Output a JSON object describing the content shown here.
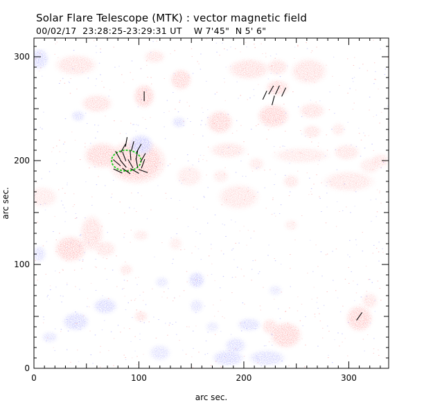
{
  "header": {
    "title": "Solar Flare Telescope (MTK) : vector magnetic field",
    "subtitle": "00/02/17  23:28:25-23:29:31 UT    W 7'45\"  N 5' 6\""
  },
  "chart_data": {
    "type": "heatmap",
    "xlabel": "arc sec.",
    "ylabel": "arc sec.",
    "xlim": [
      0,
      338
    ],
    "ylim": [
      0,
      318
    ],
    "xticks": [
      0,
      100,
      200,
      300
    ],
    "yticks": [
      0,
      100,
      200,
      300
    ],
    "grid": false,
    "colors": {
      "positive_polarity": "#ff8c8c",
      "negative_polarity": "#8c8cff",
      "contour": "#22cc22",
      "vectors": "#000000"
    },
    "positive_patches": [
      {
        "x": 98,
        "y": 199,
        "rx": 22,
        "ry": 17,
        "w": 1.0
      },
      {
        "x": 65,
        "y": 205,
        "rx": 14,
        "ry": 10,
        "w": 0.8
      },
      {
        "x": 105,
        "y": 262,
        "rx": 8,
        "ry": 9,
        "w": 0.9
      },
      {
        "x": 140,
        "y": 278,
        "rx": 8,
        "ry": 8,
        "w": 0.8
      },
      {
        "x": 60,
        "y": 255,
        "rx": 12,
        "ry": 7,
        "w": 0.6
      },
      {
        "x": 40,
        "y": 292,
        "rx": 16,
        "ry": 8,
        "w": 0.55
      },
      {
        "x": 115,
        "y": 300,
        "rx": 8,
        "ry": 5,
        "w": 0.5
      },
      {
        "x": 205,
        "y": 288,
        "rx": 16,
        "ry": 8,
        "w": 0.6
      },
      {
        "x": 232,
        "y": 290,
        "rx": 8,
        "ry": 6,
        "w": 0.6
      },
      {
        "x": 262,
        "y": 286,
        "rx": 14,
        "ry": 10,
        "w": 0.55
      },
      {
        "x": 228,
        "y": 243,
        "rx": 12,
        "ry": 9,
        "w": 0.9
      },
      {
        "x": 232,
        "y": 270,
        "rx": 9,
        "ry": 6,
        "w": 0.7
      },
      {
        "x": 265,
        "y": 248,
        "rx": 10,
        "ry": 6,
        "w": 0.55
      },
      {
        "x": 177,
        "y": 237,
        "rx": 10,
        "ry": 9,
        "w": 0.8
      },
      {
        "x": 265,
        "y": 228,
        "rx": 7,
        "ry": 5,
        "w": 0.5
      },
      {
        "x": 298,
        "y": 208,
        "rx": 10,
        "ry": 6,
        "w": 0.5
      },
      {
        "x": 255,
        "y": 205,
        "rx": 22,
        "ry": 6,
        "w": 0.4
      },
      {
        "x": 185,
        "y": 210,
        "rx": 14,
        "ry": 6,
        "w": 0.5
      },
      {
        "x": 35,
        "y": 115,
        "rx": 12,
        "ry": 10,
        "w": 0.9
      },
      {
        "x": 55,
        "y": 130,
        "rx": 9,
        "ry": 14,
        "w": 0.6
      },
      {
        "x": 68,
        "y": 115,
        "rx": 8,
        "ry": 6,
        "w": 0.5
      },
      {
        "x": 300,
        "y": 180,
        "rx": 20,
        "ry": 8,
        "w": 0.45
      },
      {
        "x": 320,
        "y": 195,
        "rx": 8,
        "ry": 6,
        "w": 0.4
      },
      {
        "x": 310,
        "y": 48,
        "rx": 10,
        "ry": 10,
        "w": 0.9
      },
      {
        "x": 320,
        "y": 65,
        "rx": 6,
        "ry": 6,
        "w": 0.5
      },
      {
        "x": 240,
        "y": 32,
        "rx": 12,
        "ry": 10,
        "w": 0.9
      },
      {
        "x": 225,
        "y": 40,
        "rx": 6,
        "ry": 6,
        "w": 0.6
      },
      {
        "x": 195,
        "y": 165,
        "rx": 16,
        "ry": 10,
        "w": 0.45
      },
      {
        "x": 148,
        "y": 185,
        "rx": 10,
        "ry": 8,
        "w": 0.4
      },
      {
        "x": 245,
        "y": 180,
        "rx": 6,
        "ry": 5,
        "w": 0.5
      },
      {
        "x": 102,
        "y": 50,
        "rx": 5,
        "ry": 4,
        "w": 0.6
      },
      {
        "x": 88,
        "y": 95,
        "rx": 5,
        "ry": 4,
        "w": 0.5
      },
      {
        "x": 8,
        "y": 165,
        "rx": 12,
        "ry": 8,
        "w": 0.4
      },
      {
        "x": 212,
        "y": 197,
        "rx": 6,
        "ry": 5,
        "w": 0.4
      },
      {
        "x": 330,
        "y": 200,
        "rx": 7,
        "ry": 5,
        "w": 0.5
      },
      {
        "x": 178,
        "y": 185,
        "rx": 6,
        "ry": 5,
        "w": 0.4
      },
      {
        "x": 102,
        "y": 128,
        "rx": 6,
        "ry": 4,
        "w": 0.4
      },
      {
        "x": 290,
        "y": 230,
        "rx": 5,
        "ry": 5,
        "w": 0.4
      },
      {
        "x": 135,
        "y": 120,
        "rx": 5,
        "ry": 5,
        "w": 0.35
      },
      {
        "x": 245,
        "y": 138,
        "rx": 5,
        "ry": 4,
        "w": 0.35
      }
    ],
    "negative_patches": [
      {
        "x": 102,
        "y": 215,
        "rx": 9,
        "ry": 8,
        "w": 0.9
      },
      {
        "x": 5,
        "y": 298,
        "rx": 7,
        "ry": 8,
        "w": 0.7
      },
      {
        "x": 42,
        "y": 243,
        "rx": 5,
        "ry": 4,
        "w": 0.6
      },
      {
        "x": 138,
        "y": 237,
        "rx": 5,
        "ry": 4,
        "w": 0.6
      },
      {
        "x": 155,
        "y": 85,
        "rx": 6,
        "ry": 6,
        "w": 0.8
      },
      {
        "x": 40,
        "y": 45,
        "rx": 10,
        "ry": 7,
        "w": 0.7
      },
      {
        "x": 68,
        "y": 60,
        "rx": 9,
        "ry": 6,
        "w": 0.7
      },
      {
        "x": 205,
        "y": 42,
        "rx": 9,
        "ry": 5,
        "w": 0.6
      },
      {
        "x": 192,
        "y": 22,
        "rx": 8,
        "ry": 6,
        "w": 0.6
      },
      {
        "x": 185,
        "y": 10,
        "rx": 12,
        "ry": 6,
        "w": 0.7
      },
      {
        "x": 222,
        "y": 10,
        "rx": 14,
        "ry": 6,
        "w": 0.6
      },
      {
        "x": 155,
        "y": 60,
        "rx": 5,
        "ry": 5,
        "w": 0.5
      },
      {
        "x": 5,
        "y": 110,
        "rx": 5,
        "ry": 6,
        "w": 0.6
      },
      {
        "x": 120,
        "y": 15,
        "rx": 8,
        "ry": 6,
        "w": 0.5
      },
      {
        "x": 15,
        "y": 30,
        "rx": 6,
        "ry": 4,
        "w": 0.5
      },
      {
        "x": 230,
        "y": 75,
        "rx": 5,
        "ry": 4,
        "w": 0.4
      },
      {
        "x": 122,
        "y": 83,
        "rx": 5,
        "ry": 4,
        "w": 0.45
      },
      {
        "x": 170,
        "y": 40,
        "rx": 5,
        "ry": 4,
        "w": 0.4
      }
    ],
    "strong_field_contour": {
      "x": 88,
      "y": 200,
      "rx": 14,
      "ry": 10
    },
    "vectors": [
      {
        "x": 85,
        "y": 212,
        "angle": 60
      },
      {
        "x": 88,
        "y": 218,
        "angle": 80
      },
      {
        "x": 94,
        "y": 214,
        "angle": 75
      },
      {
        "x": 100,
        "y": 212,
        "angle": 60
      },
      {
        "x": 80,
        "y": 205,
        "angle": 120
      },
      {
        "x": 86,
        "y": 204,
        "angle": 110
      },
      {
        "x": 92,
        "y": 205,
        "angle": 95
      },
      {
        "x": 98,
        "y": 205,
        "angle": 80
      },
      {
        "x": 104,
        "y": 203,
        "angle": 60
      },
      {
        "x": 79,
        "y": 198,
        "angle": 140
      },
      {
        "x": 85,
        "y": 197,
        "angle": 130
      },
      {
        "x": 92,
        "y": 197,
        "angle": 120
      },
      {
        "x": 98,
        "y": 198,
        "angle": 100
      },
      {
        "x": 104,
        "y": 197,
        "angle": 70
      },
      {
        "x": 80,
        "y": 190,
        "angle": 155
      },
      {
        "x": 88,
        "y": 190,
        "angle": 145
      },
      {
        "x": 96,
        "y": 190,
        "angle": 150
      },
      {
        "x": 104,
        "y": 190,
        "angle": 160
      },
      {
        "x": 105,
        "y": 262,
        "angle": 90
      },
      {
        "x": 220,
        "y": 263,
        "angle": 65
      },
      {
        "x": 226,
        "y": 268,
        "angle": 60
      },
      {
        "x": 232,
        "y": 268,
        "angle": 65
      },
      {
        "x": 238,
        "y": 266,
        "angle": 65
      },
      {
        "x": 228,
        "y": 258,
        "angle": 75
      },
      {
        "x": 310,
        "y": 50,
        "angle": 55
      }
    ]
  }
}
